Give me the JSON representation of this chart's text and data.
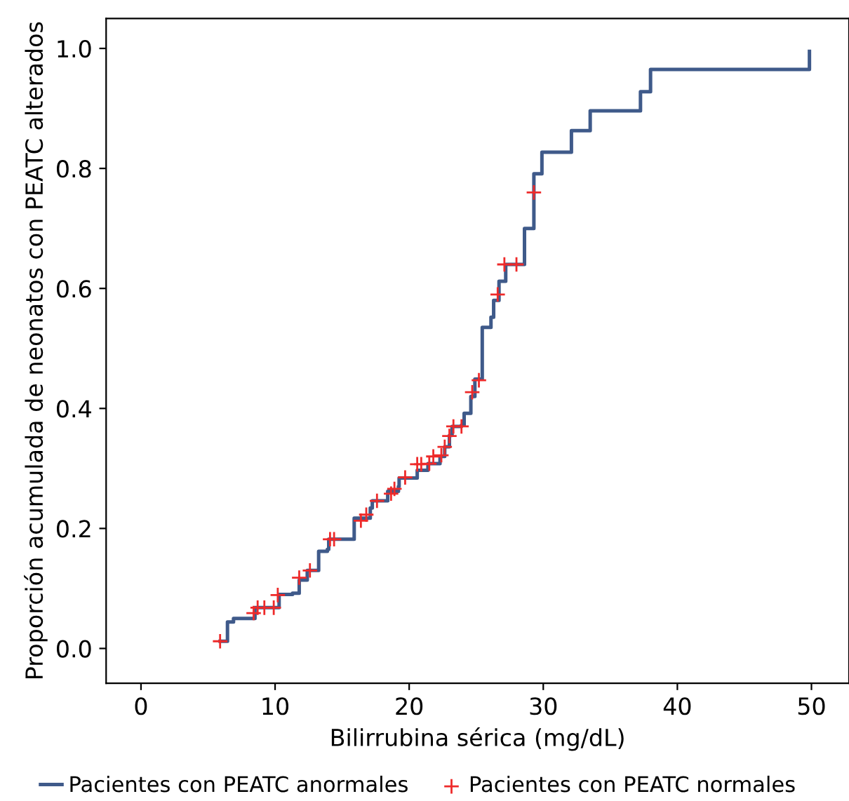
{
  "chart_data": {
    "type": "step",
    "xlabel": "Bilirrubina sérica (mg/dL)",
    "ylabel": "Proporción acumulada de neonatos con PEATC alterados",
    "series": [
      {
        "name": "Pacientes con PEATC anormales",
        "color": "#3f5a8a",
        "line_style": "solid",
        "marker": "none",
        "x": [
          5.9,
          6.45,
          6.9,
          8.5,
          9.9,
          10.3,
          11.3,
          11.8,
          12.4,
          13.25,
          13.9,
          14.0,
          15.3,
          15.9,
          16.5,
          17.1,
          17.25,
          18.4,
          19.2,
          19.25,
          20.6,
          21.4,
          22.3,
          22.65,
          23.0,
          23.2,
          23.9,
          24.1,
          24.6,
          24.9,
          25.45,
          26.1,
          26.3,
          26.7,
          27.2,
          28.6,
          29.3,
          29.9,
          32.1,
          33.5,
          37.25,
          38.0,
          49.85
        ],
        "values": [
          0.012,
          0.044,
          0.05,
          0.068,
          0.068,
          0.09,
          0.092,
          0.114,
          0.13,
          0.162,
          0.165,
          0.182,
          0.182,
          0.217,
          0.217,
          0.234,
          0.246,
          0.262,
          0.27,
          0.284,
          0.297,
          0.308,
          0.32,
          0.336,
          0.355,
          0.37,
          0.372,
          0.392,
          0.42,
          0.449,
          0.535,
          0.552,
          0.58,
          0.612,
          0.64,
          0.7,
          0.791,
          0.827,
          0.863,
          0.896,
          0.928,
          0.965,
          0.995
        ]
      },
      {
        "name": "Pacientes con PEATC normales",
        "color": "#ee2a2a",
        "type": "scatter",
        "marker": "cross",
        "x": [
          5.9,
          8.4,
          8.7,
          9.2,
          9.9,
          10.2,
          11.8,
          12.6,
          14.1,
          14.4,
          16.4,
          16.8,
          17.6,
          18.65,
          18.9,
          19.7,
          20.6,
          20.9,
          21.5,
          21.8,
          22.4,
          22.65,
          23.0,
          23.3,
          23.9,
          24.7,
          25.2,
          26.6,
          27.1,
          28.0,
          29.3
        ],
        "values": [
          0.012,
          0.059,
          0.068,
          0.068,
          0.068,
          0.089,
          0.118,
          0.13,
          0.182,
          0.182,
          0.213,
          0.223,
          0.246,
          0.258,
          0.266,
          0.285,
          0.307,
          0.307,
          0.308,
          0.32,
          0.322,
          0.336,
          0.354,
          0.37,
          0.37,
          0.427,
          0.447,
          0.59,
          0.64,
          0.64,
          0.76
        ]
      }
    ],
    "xlim": [
      -2.6,
      52.8
    ],
    "ylim": [
      -0.058,
      1.05
    ],
    "xticks": [
      0,
      10,
      20,
      30,
      40,
      50
    ],
    "yticks": [
      {
        "value": 0,
        "label": "0.0"
      },
      {
        "value": 0.2,
        "label": "0.2"
      },
      {
        "value": 0.4,
        "label": "0.4"
      },
      {
        "value": 0.6,
        "label": "0.6"
      },
      {
        "value": 0.8,
        "label": "0.8"
      },
      {
        "value": 1,
        "label": "1.0"
      }
    ],
    "grid": false,
    "legend": "bottom"
  }
}
